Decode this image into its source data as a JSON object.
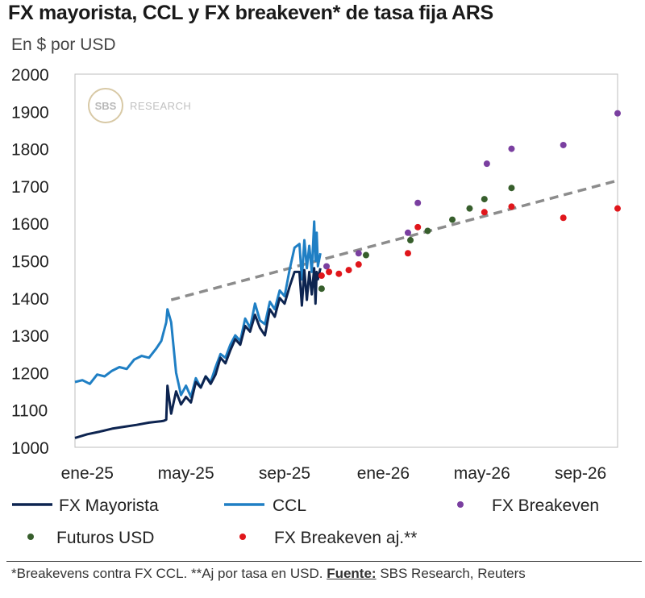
{
  "title": "FX mayorista, CCL y FX breakeven* de tasa fija ARS",
  "subtitle": "En $ por USD",
  "watermark": {
    "logo": "SBS",
    "text": "RESEARCH"
  },
  "footer": {
    "note": "*Breakevens contra FX CCL. **Aj por tasa en USD.",
    "source_label": "Fuente:",
    "source": "SBS Research, Reuters"
  },
  "colors": {
    "fx_mayorista": "#0d2450",
    "ccl": "#1f7fc4",
    "fx_breakeven": "#7a3fa0",
    "futuros": "#375e2c",
    "fx_breakeven_aj": "#e0161b",
    "trend": "#8c8c8c"
  },
  "chart_data": {
    "type": "line",
    "title": "FX mayorista, CCL y FX breakeven* de tasa fija ARS",
    "ylabel": "En $ por USD",
    "ylim": [
      1000,
      2000
    ],
    "yticks": [
      1000,
      1100,
      1200,
      1300,
      1400,
      1500,
      1600,
      1700,
      1800,
      1900,
      2000
    ],
    "xlim_months": [
      0,
      22
    ],
    "xticks": [
      {
        "label": "ene-25",
        "month": 0.5
      },
      {
        "label": "may-25",
        "month": 4.5
      },
      {
        "label": "sep-25",
        "month": 8.5
      },
      {
        "label": "ene-26",
        "month": 12.5
      },
      {
        "label": "may-26",
        "month": 16.5
      },
      {
        "label": "sep-26",
        "month": 20.5
      }
    ],
    "series": [
      {
        "name": "FX Mayorista",
        "kind": "line",
        "x": [
          0,
          0.5,
          1,
          1.5,
          2,
          2.5,
          3,
          3.5,
          3.6,
          3.7,
          3.75,
          3.9,
          4.1,
          4.3,
          4.5,
          4.7,
          4.9,
          5.1,
          5.3,
          5.5,
          5.7,
          5.9,
          6.1,
          6.3,
          6.5,
          6.7,
          6.9,
          7.1,
          7.3,
          7.5,
          7.7,
          7.9,
          8.1,
          8.3,
          8.5,
          8.7,
          8.9,
          9.1,
          9.2,
          9.3,
          9.4,
          9.5,
          9.6,
          9.7,
          9.75,
          9.8,
          9.85,
          9.95
        ],
        "values": [
          1025,
          1035,
          1042,
          1050,
          1055,
          1060,
          1066,
          1070,
          1071,
          1074,
          1165,
          1090,
          1150,
          1115,
          1135,
          1120,
          1175,
          1160,
          1190,
          1170,
          1195,
          1240,
          1225,
          1260,
          1290,
          1275,
          1325,
          1310,
          1355,
          1320,
          1300,
          1370,
          1350,
          1400,
          1385,
          1430,
          1470,
          1470,
          1380,
          1475,
          1395,
          1470,
          1410,
          1480,
          1385,
          1470,
          1450,
          1480
        ]
      },
      {
        "name": "CCL",
        "kind": "line",
        "x": [
          0,
          0.3,
          0.6,
          0.9,
          1.2,
          1.5,
          1.8,
          2.1,
          2.4,
          2.7,
          3,
          3.3,
          3.5,
          3.6,
          3.7,
          3.75,
          3.9,
          4.1,
          4.3,
          4.5,
          4.7,
          4.9,
          5.1,
          5.3,
          5.5,
          5.7,
          5.9,
          6.1,
          6.3,
          6.5,
          6.7,
          6.9,
          7.1,
          7.3,
          7.5,
          7.7,
          7.9,
          8.1,
          8.3,
          8.5,
          8.7,
          8.9,
          9.1,
          9.2,
          9.3,
          9.4,
          9.5,
          9.6,
          9.7,
          9.75,
          9.8,
          9.85,
          9.95
        ],
        "values": [
          1175,
          1180,
          1170,
          1195,
          1190,
          1205,
          1215,
          1210,
          1235,
          1245,
          1240,
          1265,
          1285,
          1310,
          1335,
          1370,
          1335,
          1200,
          1140,
          1165,
          1135,
          1185,
          1160,
          1190,
          1175,
          1215,
          1250,
          1240,
          1275,
          1300,
          1285,
          1345,
          1320,
          1385,
          1340,
          1330,
          1390,
          1370,
          1420,
          1405,
          1475,
          1535,
          1545,
          1450,
          1555,
          1480,
          1540,
          1470,
          1605,
          1500,
          1575,
          1485,
          1520
        ]
      },
      {
        "name": "FX Breakeven",
        "kind": "scatter",
        "x": [
          10.2,
          11.5,
          13.5,
          13.9,
          16.7,
          17.7,
          19.8,
          22
        ],
        "values": [
          1485,
          1520,
          1575,
          1655,
          1760,
          1800,
          1810,
          1895
        ]
      },
      {
        "name": "Futuros USD",
        "kind": "scatter",
        "x": [
          10,
          11.8,
          13.6,
          14.3,
          15.3,
          16,
          16.6,
          17.7
        ],
        "values": [
          1425,
          1515,
          1555,
          1580,
          1610,
          1640,
          1665,
          1695
        ]
      },
      {
        "name": "FX Breakeven aj.**",
        "kind": "scatter",
        "x": [
          10,
          10.3,
          10.7,
          11.1,
          11.5,
          13.5,
          13.9,
          16.6,
          17.7,
          19.8,
          22
        ],
        "values": [
          1460,
          1470,
          1465,
          1475,
          1490,
          1520,
          1590,
          1630,
          1645,
          1615,
          1640
        ]
      },
      {
        "name": "trend",
        "kind": "dashed-line",
        "x": [
          3.9,
          22
        ],
        "values": [
          1395,
          1715
        ]
      }
    ],
    "legend": [
      {
        "name": "FX Mayorista",
        "marker": "line"
      },
      {
        "name": "CCL",
        "marker": "line"
      },
      {
        "name": "FX Breakeven",
        "marker": "dot"
      },
      {
        "name": "Futuros USD",
        "marker": "dot"
      },
      {
        "name": "FX Breakeven aj.**",
        "marker": "dot"
      }
    ]
  }
}
